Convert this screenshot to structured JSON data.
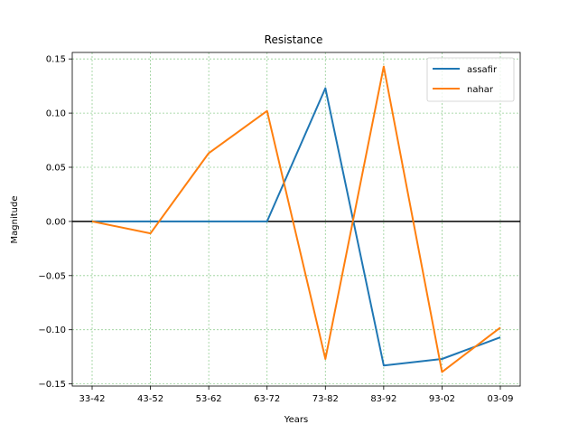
{
  "chart_data": {
    "type": "line",
    "title": "Resistance",
    "xlabel": "Years",
    "ylabel": "Magnitude",
    "categories": [
      "33-42",
      "43-52",
      "53-62",
      "63-72",
      "73-82",
      "83-92",
      "93-02",
      "03-09"
    ],
    "ylim": [
      -0.152,
      0.156
    ],
    "yticks": [
      0.15,
      0.1,
      0.05,
      0.0,
      -0.05,
      -0.1,
      -0.15
    ],
    "ytick_labels": [
      "0.15",
      "0.10",
      "0.05",
      "0.00",
      "−0.05",
      "−0.10",
      "−0.15"
    ],
    "grid": true,
    "grid_color": "#2ca02c",
    "zero_line": true,
    "legend_position": "top-right",
    "series": [
      {
        "name": "assafir",
        "color": "#1f77b4",
        "values": [
          0.0,
          0.0,
          0.0,
          0.0,
          0.123,
          -0.133,
          -0.127,
          -0.107
        ]
      },
      {
        "name": "nahar",
        "color": "#ff7f0e",
        "values": [
          0.0,
          -0.011,
          0.063,
          0.102,
          -0.127,
          0.143,
          -0.139,
          -0.098
        ]
      }
    ]
  }
}
